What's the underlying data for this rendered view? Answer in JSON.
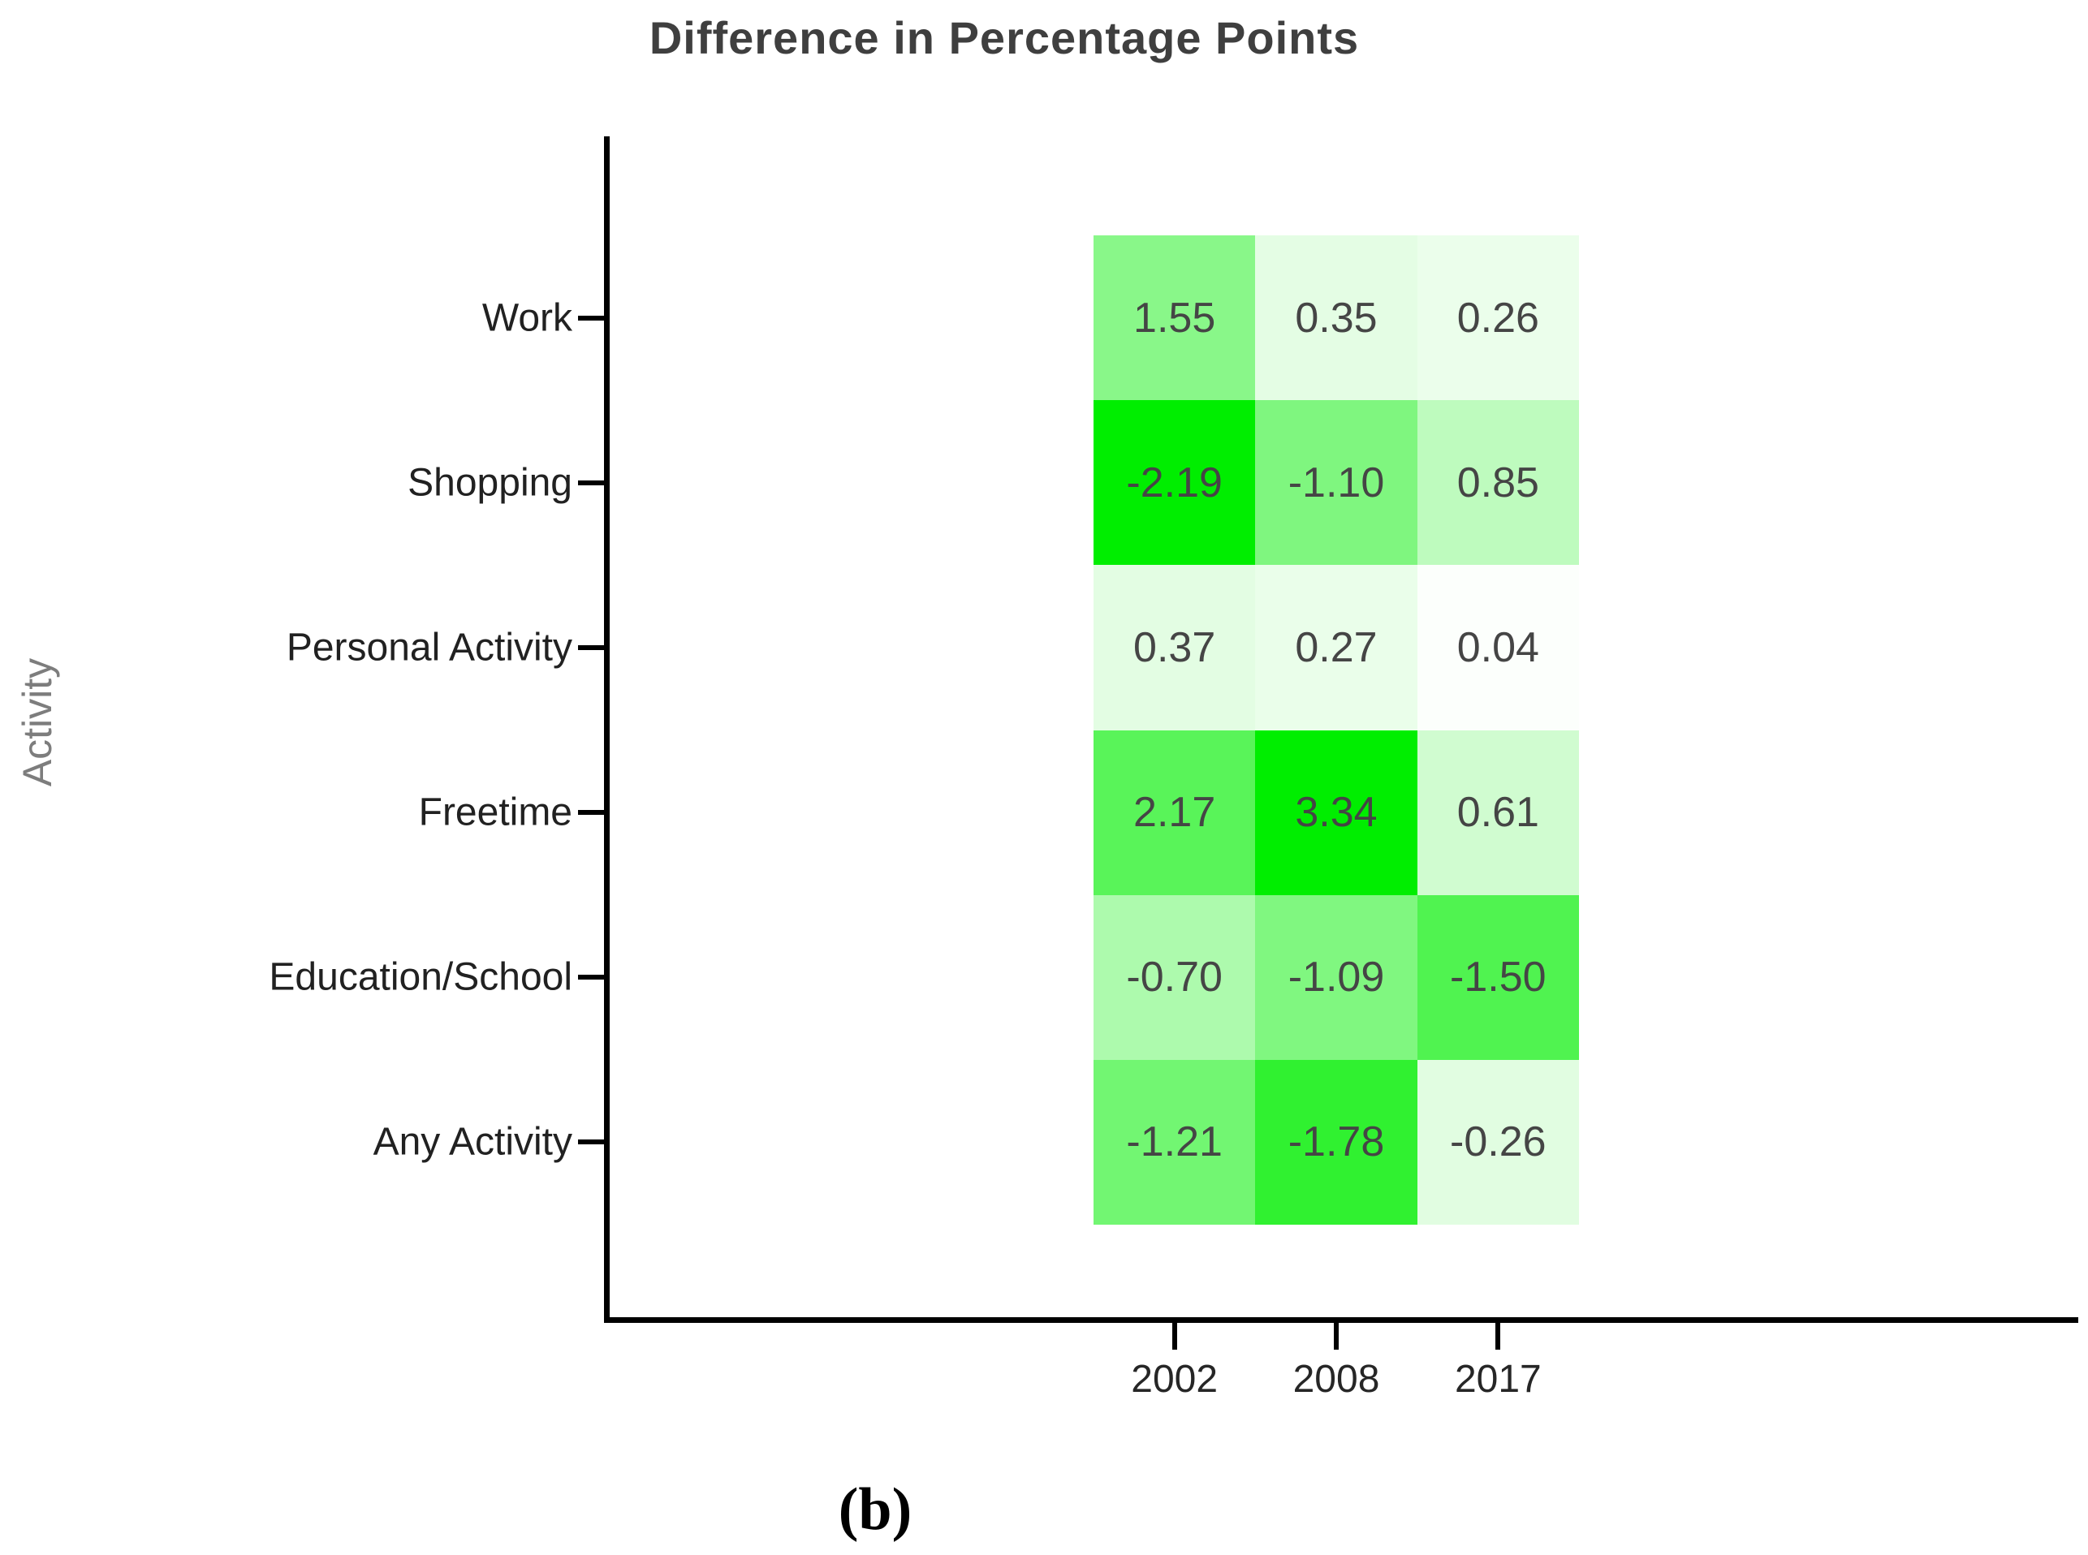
{
  "title": "Difference in Percentage Points",
  "caption": "(b)",
  "chart_data": {
    "type": "heatmap",
    "title": "Difference in Percentage Points",
    "xlabel": "",
    "ylabel": "Activity",
    "rows": [
      "Work",
      "Shopping",
      "Personal Activity",
      "Freetime",
      "Education/School",
      "Any Activity"
    ],
    "columns": [
      "2002",
      "2008",
      "2017"
    ],
    "values": [
      [
        1.55,
        0.35,
        0.26
      ],
      [
        -2.19,
        -1.1,
        0.85
      ],
      [
        0.37,
        0.27,
        0.04
      ],
      [
        2.17,
        3.34,
        0.61
      ],
      [
        -0.7,
        -1.09,
        -1.5
      ],
      [
        -1.21,
        -1.78,
        -0.26
      ]
    ],
    "cell_label_decimals": 2,
    "colormap": {
      "low": "#FFFFFF",
      "high": "#00EE00",
      "note": "green intensity scales with magnitude; each sign scaled to its own extreme",
      "negative_extreme": -2.19,
      "positive_extreme": 3.34
    },
    "legend": "none",
    "grid": "off"
  }
}
